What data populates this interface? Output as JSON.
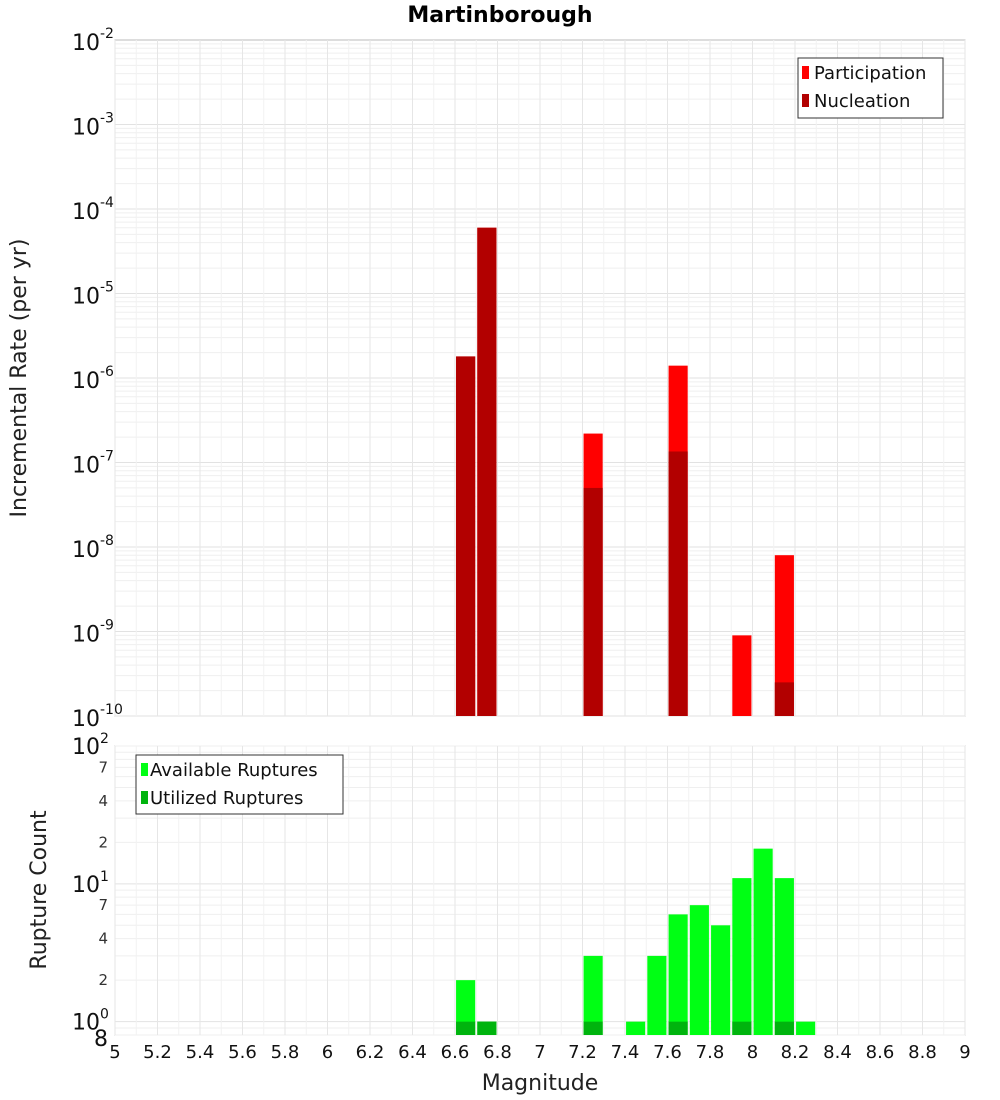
{
  "chart_data": [
    {
      "type": "bar",
      "title": "Martinborough",
      "xlabel": "",
      "ylabel": "Incremental Rate (per yr)",
      "x_range": [
        5,
        9
      ],
      "y_scale": "log",
      "y_range": [
        1e-10,
        0.01
      ],
      "y_ticks": [
        "10^-10",
        "10^-9",
        "10^-8",
        "10^-7",
        "10^-6",
        "10^-5",
        "10^-4",
        "10^-3",
        "10^-2"
      ],
      "grid": true,
      "legend_position": "top-right",
      "bar_width": 0.09,
      "colors": {
        "Participation": "#ff0000",
        "Nucleation": "#b20000"
      },
      "series": [
        {
          "name": "Participation",
          "x": [
            6.65,
            6.75,
            7.25,
            7.65,
            7.95,
            8.15
          ],
          "values": [
            1.8e-06,
            6e-05,
            2.2e-07,
            1.4e-06,
            9e-10,
            8e-09
          ]
        },
        {
          "name": "Nucleation",
          "x": [
            6.65,
            6.75,
            7.25,
            7.65,
            8.15
          ],
          "values": [
            1.8e-06,
            6e-05,
            5e-08,
            1.35e-07,
            2.5e-10
          ]
        }
      ]
    },
    {
      "type": "bar",
      "xlabel": "Magnitude",
      "ylabel": "Rupture Count",
      "x_range": [
        5,
        9
      ],
      "x_ticks": [
        "5",
        "5.2",
        "5.4",
        "5.6",
        "5.8",
        "6",
        "6.2",
        "6.4",
        "6.6",
        "6.8",
        "7",
        "7.2",
        "7.4",
        "7.6",
        "7.8",
        "8",
        "8.2",
        "8.4",
        "8.6",
        "8.8",
        "9"
      ],
      "y_scale": "log",
      "y_range": [
        0.8,
        100
      ],
      "y_tick_labels": [
        "8",
        "10^0",
        "2",
        "4",
        "7",
        "10^1",
        "2",
        "4",
        "7",
        "10^2"
      ],
      "grid": true,
      "legend_position": "top-left",
      "bar_width": 0.09,
      "colors": {
        "Available Ruptures": "#00ff14",
        "Utilized Ruptures": "#00b40e"
      },
      "series": [
        {
          "name": "Available Ruptures",
          "x": [
            6.65,
            6.75,
            7.25,
            7.45,
            7.55,
            7.65,
            7.75,
            7.85,
            7.95,
            8.05,
            8.15,
            8.25
          ],
          "values": [
            2,
            1,
            3,
            1,
            3,
            6,
            7,
            5,
            11,
            18,
            11,
            1
          ]
        },
        {
          "name": "Utilized Ruptures",
          "x": [
            6.65,
            6.75,
            7.25,
            7.65,
            7.95,
            8.15
          ],
          "values": [
            1,
            1,
            1,
            1,
            1,
            1
          ]
        }
      ]
    }
  ]
}
